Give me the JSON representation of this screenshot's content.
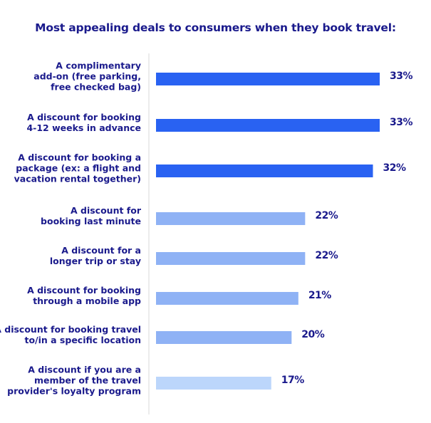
{
  "chart_data": {
    "type": "bar",
    "orientation": "horizontal",
    "title": "Most appealing deals to consumers when they book travel:",
    "categories": [
      [
        "A complimentary",
        "add-on (free parking,",
        "free checked bag)"
      ],
      [
        "A discount for booking",
        "4-12 weeks in advance"
      ],
      [
        "A discount for booking a",
        "package (ex: a flight and",
        "vacation rental together)"
      ],
      [
        "A discount for",
        "booking last minute"
      ],
      [
        "A discount for a",
        "longer trip or stay"
      ],
      [
        "A discount for booking",
        "through a mobile app"
      ],
      [
        "A discount for booking travel",
        "to/in a specific location"
      ],
      [
        "A discount if you are a",
        "member of the travel",
        "provider's loyalty program"
      ]
    ],
    "values": [
      33,
      33,
      32,
      22,
      22,
      21,
      20,
      17
    ],
    "value_labels": [
      "33%",
      "33%",
      "32%",
      "22%",
      "22%",
      "21%",
      "20%",
      "17%"
    ],
    "bar_colors": [
      "#2962f2",
      "#2962f2",
      "#2962f2",
      "#8fb2f5",
      "#8fb2f5",
      "#8fb2f5",
      "#8fb2f5",
      "#bcd6fb"
    ],
    "text_color": "#1a1a8c",
    "axis_line_color": "#e6e6e6",
    "xlim": [
      0,
      33
    ],
    "grid": false,
    "legend": "none"
  }
}
